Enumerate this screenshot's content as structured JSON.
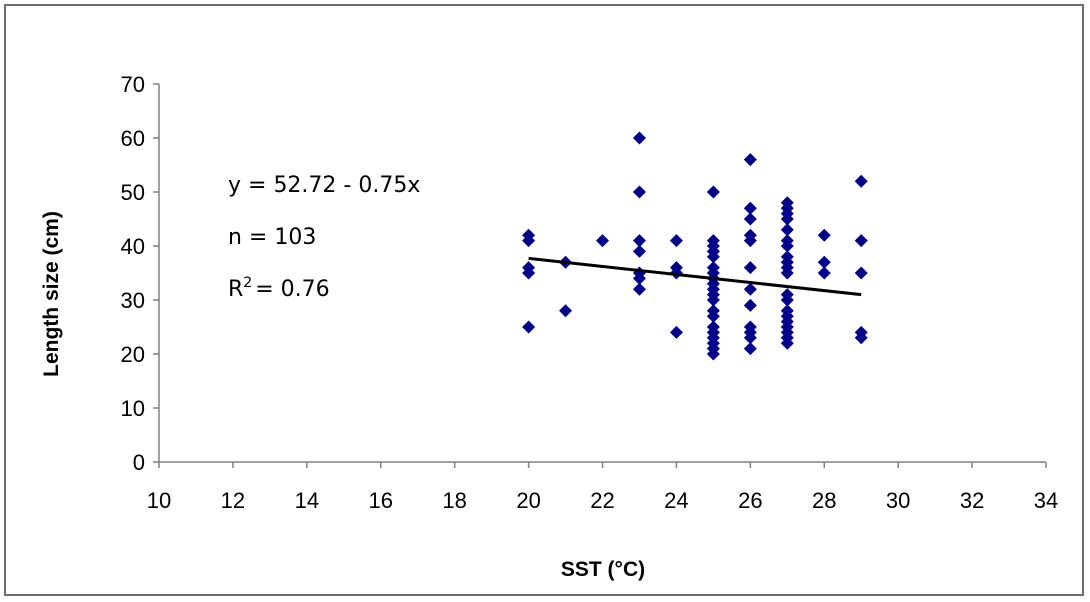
{
  "chart_data": {
    "type": "scatter",
    "title": "",
    "xlabel": "SST (°C)",
    "ylabel": "Length size (cm)",
    "xlim": [
      10,
      34
    ],
    "ylim": [
      0,
      70
    ],
    "xticks": [
      10,
      12,
      14,
      16,
      18,
      20,
      22,
      24,
      26,
      28,
      30,
      32,
      34
    ],
    "yticks": [
      0,
      10,
      20,
      30,
      40,
      50,
      60,
      70
    ],
    "grid": false,
    "legend": "none",
    "marker_color": "#00008b",
    "trendline_color": "#000000",
    "series": [
      {
        "points": [
          [
            20,
            42
          ],
          [
            20,
            41
          ],
          [
            20,
            36
          ],
          [
            20,
            35
          ],
          [
            20,
            25
          ],
          [
            21,
            37
          ],
          [
            21,
            28
          ],
          [
            22,
            41
          ],
          [
            23,
            60
          ],
          [
            23,
            50
          ],
          [
            23,
            41
          ],
          [
            23,
            39
          ],
          [
            23,
            35
          ],
          [
            23,
            34
          ],
          [
            23,
            32
          ],
          [
            24,
            41
          ],
          [
            24,
            36
          ],
          [
            24,
            35
          ],
          [
            24,
            24
          ],
          [
            25,
            50
          ],
          [
            25,
            41
          ],
          [
            25,
            40
          ],
          [
            25,
            39
          ],
          [
            25,
            38
          ],
          [
            25,
            36
          ],
          [
            25,
            35
          ],
          [
            25,
            34
          ],
          [
            25,
            33
          ],
          [
            25,
            32
          ],
          [
            25,
            31
          ],
          [
            25,
            30
          ],
          [
            25,
            28
          ],
          [
            25,
            27
          ],
          [
            25,
            25
          ],
          [
            25,
            24
          ],
          [
            25,
            23
          ],
          [
            25,
            22
          ],
          [
            25,
            21
          ],
          [
            25,
            20
          ],
          [
            26,
            56
          ],
          [
            26,
            47
          ],
          [
            26,
            45
          ],
          [
            26,
            42
          ],
          [
            26,
            41
          ],
          [
            26,
            36
          ],
          [
            26,
            32
          ],
          [
            26,
            29
          ],
          [
            26,
            25
          ],
          [
            26,
            24
          ],
          [
            26,
            23
          ],
          [
            26,
            21
          ],
          [
            27,
            48
          ],
          [
            27,
            47
          ],
          [
            27,
            46
          ],
          [
            27,
            45
          ],
          [
            27,
            43
          ],
          [
            27,
            41
          ],
          [
            27,
            40
          ],
          [
            27,
            38
          ],
          [
            27,
            37
          ],
          [
            27,
            36
          ],
          [
            27,
            35
          ],
          [
            27,
            31
          ],
          [
            27,
            30
          ],
          [
            27,
            28
          ],
          [
            27,
            27
          ],
          [
            27,
            26
          ],
          [
            27,
            25
          ],
          [
            27,
            24
          ],
          [
            27,
            23
          ],
          [
            27,
            22
          ],
          [
            28,
            42
          ],
          [
            28,
            37
          ],
          [
            28,
            35
          ],
          [
            29,
            52
          ],
          [
            29,
            41
          ],
          [
            29,
            35
          ],
          [
            29,
            24
          ],
          [
            29,
            23
          ]
        ]
      }
    ],
    "trendline": {
      "x": [
        20,
        29
      ],
      "y": [
        37.7,
        31.0
      ]
    },
    "annotations": [
      "y = 52.72 - 0.75x",
      "n = 103",
      "R",
      "2",
      "= 0.76"
    ]
  }
}
